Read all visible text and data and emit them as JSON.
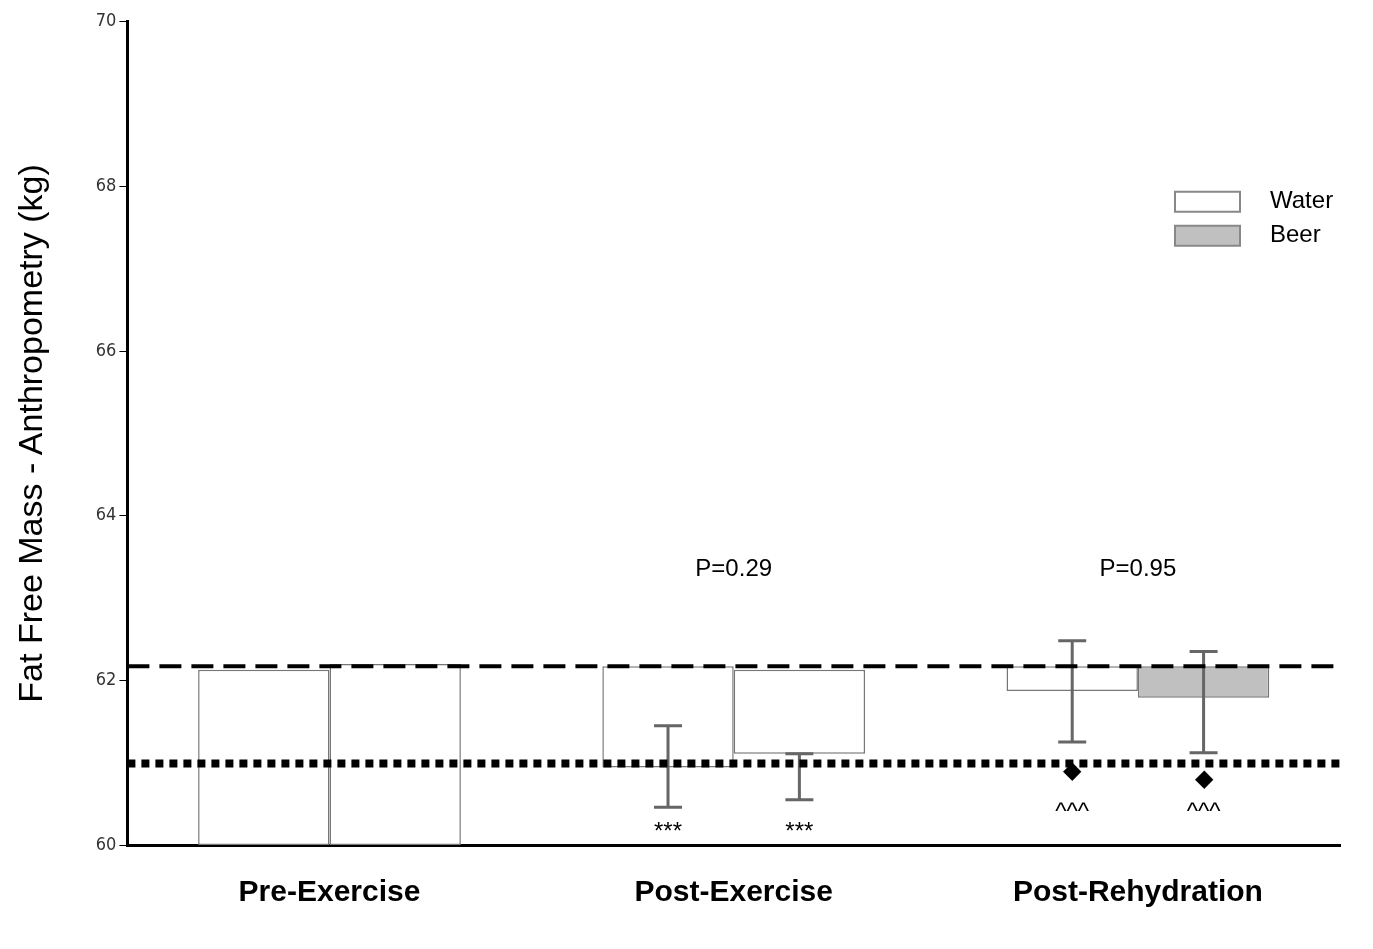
{
  "chart_data": {
    "type": "bar",
    "ylabel": "Fat Free Mass - Anthropometry (kg)",
    "categories": [
      "Pre-Exercise",
      "Post-Exercise",
      "Post-Rehydration"
    ],
    "series": [
      {
        "name": "Water",
        "color": "#ffffff",
        "colors": [
          "#ffffff",
          "#ffffff",
          "#ffffff"
        ],
        "base": [
          60,
          60.94,
          61.87
        ],
        "values": [
          2.13,
          1.23,
          0.3
        ],
        "errors": [
          null,
          [
            60.46,
            61.45
          ],
          [
            61.25,
            62.48
          ]
        ]
      },
      {
        "name": "Beer",
        "color": "#c0c0c0",
        "colors": [
          "#ffffff",
          "#ffffff",
          "#c0c0c0"
        ],
        "base": [
          60,
          61.11,
          61.79
        ],
        "values": [
          2.2,
          1.02,
          0.38
        ],
        "errors": [
          null,
          [
            60.55,
            61.11
          ],
          [
            61.12,
            62.35
          ]
        ]
      }
    ],
    "ylim": [
      60,
      70
    ],
    "yticks": [
      60,
      62,
      64,
      66,
      68,
      70
    ],
    "grid": false,
    "legend": "top right",
    "ref_lines": [
      {
        "axis": "y",
        "value": 62.17,
        "line_style": "dashed",
        "color": "#000000"
      },
      {
        "axis": "y",
        "value": 60.99,
        "line_style": "dotted",
        "color": "#000000"
      }
    ],
    "annotations": [
      "P=0.29",
      "P=0.95",
      "***",
      "***",
      "◆",
      "◆",
      "^^^",
      "^^^"
    ]
  }
}
